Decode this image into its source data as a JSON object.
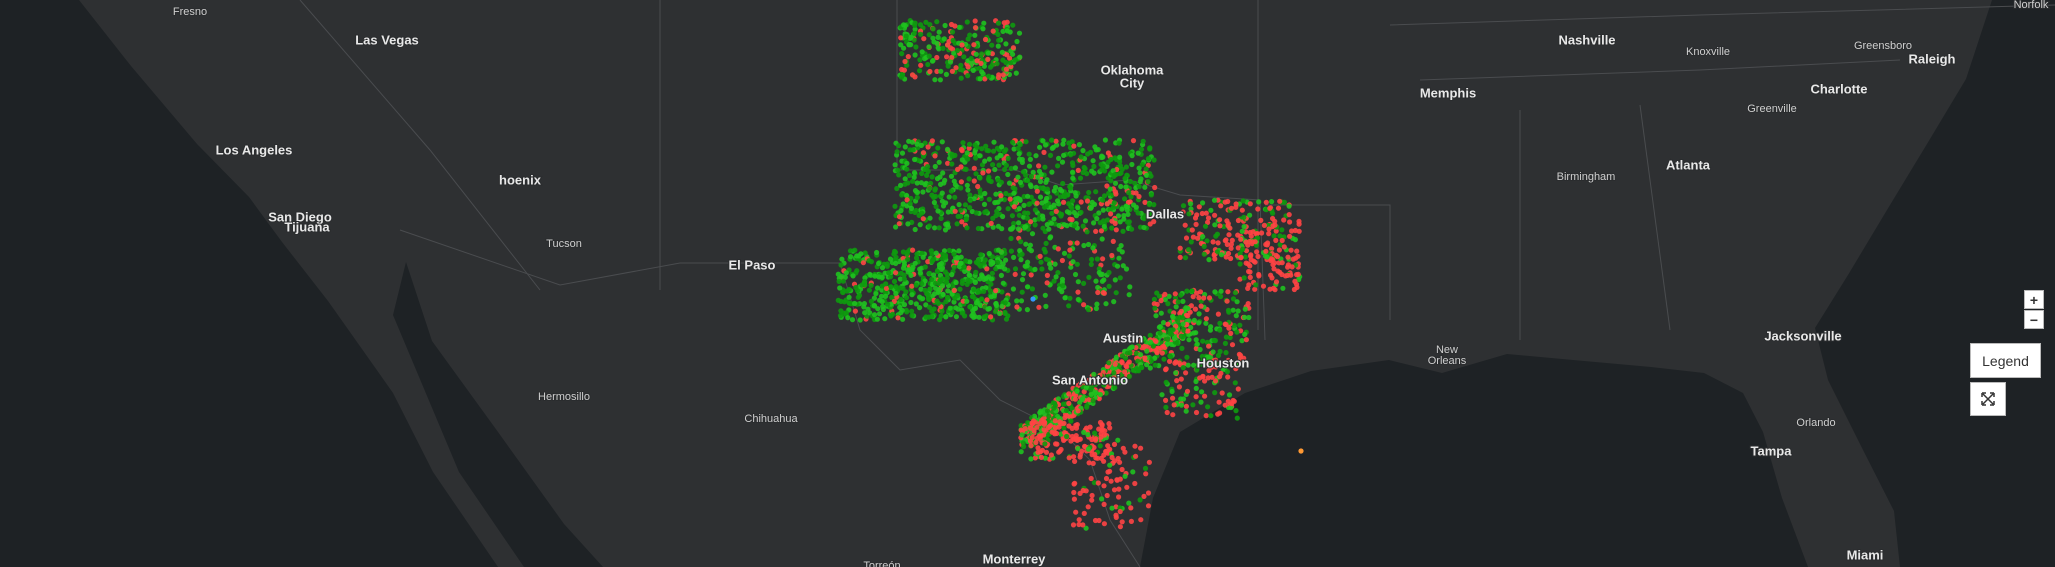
{
  "map": {
    "places": [
      "Fresno",
      "Las Vegas",
      "Los Angeles",
      "San Diego",
      "Tijuana",
      "hoenix",
      "Tucson",
      "El Paso",
      "Hermosillo",
      "Chihuahua",
      "Torreón",
      "Monterrey",
      "Oklahoma",
      "City",
      "Dallas",
      "Austin",
      "San Antonio",
      "Houston",
      "New",
      "Orleans",
      "Memphis",
      "Nashville",
      "Knoxville",
      "Greensboro",
      "Raleigh",
      "Norfolk",
      "Charlotte",
      "Greenville",
      "Birmingham",
      "Atlanta",
      "Jacksonville",
      "Orlando",
      "Tampa",
      "Miami"
    ]
  },
  "controls": {
    "zoom_in": "+",
    "zoom_out": "−",
    "legend": "Legend"
  }
}
